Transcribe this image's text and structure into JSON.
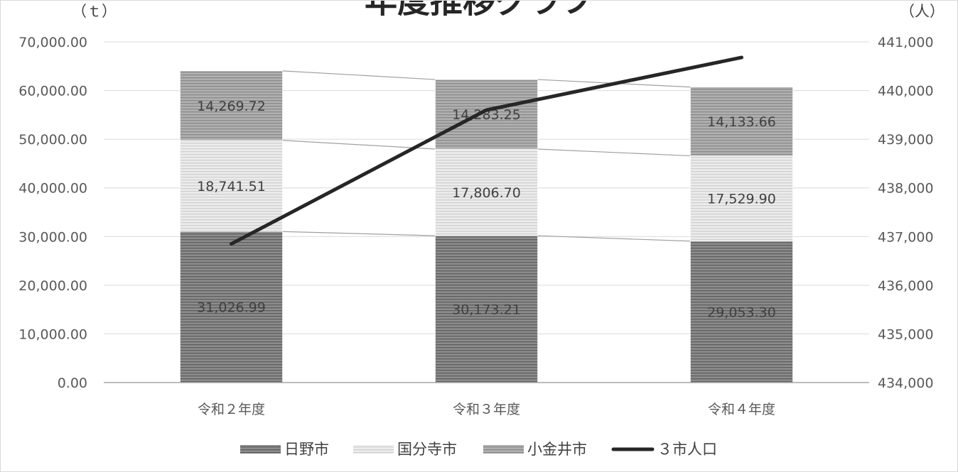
{
  "chart_data": {
    "type": "bar",
    "title": "年度推移グラフ",
    "categories": [
      "令和２年度",
      "令和３年度",
      "令和４年度"
    ],
    "stacked": true,
    "y_left": {
      "unit": "（ｔ）",
      "ylim": [
        0,
        70000
      ],
      "ticks": [
        "0.00",
        "10,000.00",
        "20,000.00",
        "30,000.00",
        "40,000.00",
        "50,000.00",
        "60,000.00",
        "70,000.00"
      ]
    },
    "y_right": {
      "unit": "（人）",
      "ylim": [
        434000,
        441000
      ],
      "ticks": [
        "434,000",
        "435,000",
        "436,000",
        "437,000",
        "438,000",
        "439,000",
        "440,000",
        "441,000"
      ]
    },
    "series": [
      {
        "name": "日野市",
        "type": "bar",
        "axis": "left",
        "color": "#7f7f7f",
        "values": [
          31026.99,
          30173.21,
          29053.3
        ],
        "labels": [
          "31,026.99",
          "30,173.21",
          "29,053.30"
        ]
      },
      {
        "name": "国分寺市",
        "type": "bar",
        "axis": "left",
        "color": "#e3e3e3",
        "values": [
          18741.51,
          17806.7,
          17529.9
        ],
        "labels": [
          "18,741.51",
          "17,806.70",
          "17,529.90"
        ]
      },
      {
        "name": "小金井市",
        "type": "bar",
        "axis": "left",
        "color": "#a6a6a6",
        "values": [
          14269.72,
          14283.25,
          14133.66
        ],
        "labels": [
          "14,269.72",
          "14,283.25",
          "14,133.66"
        ]
      },
      {
        "name": "３市人口",
        "type": "line",
        "axis": "right",
        "color": "#262626",
        "values": [
          436850,
          439600,
          440680
        ]
      }
    ],
    "grid": true,
    "legend": "bottom"
  }
}
